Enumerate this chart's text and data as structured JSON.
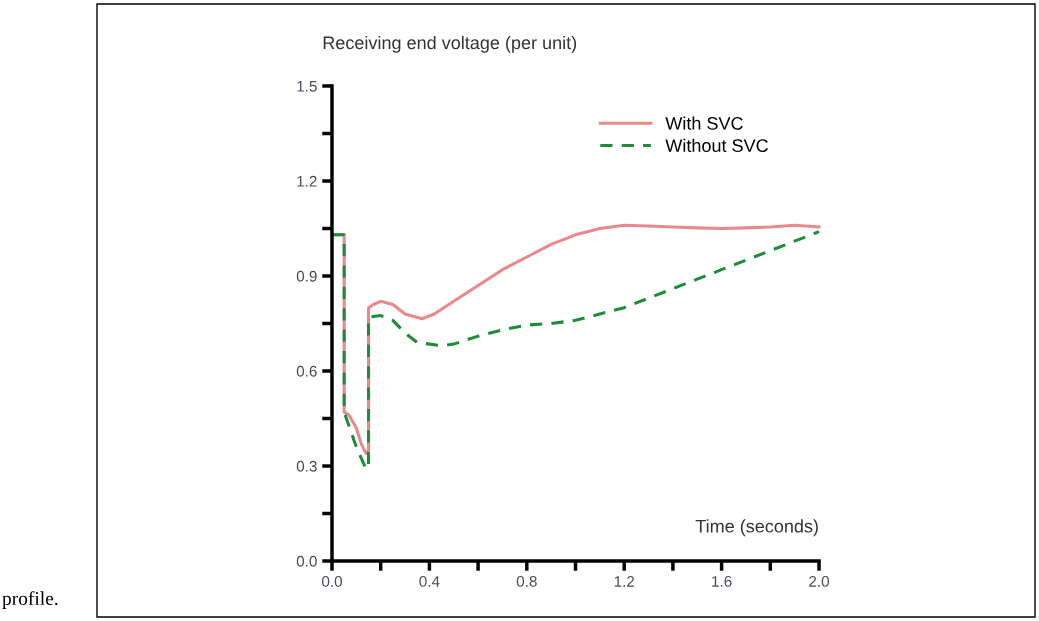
{
  "chart_data": {
    "type": "line",
    "xlabel": "Time (seconds)",
    "ylabel": "Receiving end voltage (per unit)",
    "xlim": [
      0,
      2.0
    ],
    "ylim": [
      0,
      1.5
    ],
    "xticks": [
      {
        "value": 0,
        "label": "0.0"
      },
      {
        "value": 0.2,
        "label": null
      },
      0.4,
      {
        "value": 0.6,
        "label": null
      },
      0.8,
      {
        "value": 1.0,
        "label": null
      },
      1.2,
      {
        "value": 1.4,
        "label": null
      },
      1.6,
      {
        "value": 1.8,
        "label": null
      },
      {
        "value": 2.0,
        "label": "2.0"
      }
    ],
    "yticks": [
      {
        "value": 0,
        "label": "0.0"
      },
      {
        "value": 0.15,
        "label": null
      },
      0.3,
      {
        "value": 0.45,
        "label": null
      },
      0.6,
      {
        "value": 0.75,
        "label": null
      },
      0.9,
      {
        "value": 1.05,
        "label": null
      },
      1.2,
      {
        "value": 1.35,
        "label": null
      },
      1.5
    ],
    "grid": false,
    "legend": "top right",
    "marker": "none",
    "annotations": [
      "profile."
    ],
    "series": [
      {
        "name": "With SVC",
        "color": "#e8898c",
        "line_style": "solid",
        "x": [
          0,
          0.05,
          0.05,
          0.07,
          0.1,
          0.12,
          0.14,
          0.15,
          0.15,
          0.17,
          0.2,
          0.25,
          0.3,
          0.37,
          0.42,
          0.5,
          0.6,
          0.7,
          0.8,
          0.9,
          1.0,
          1.1,
          1.2,
          1.3,
          1.4,
          1.5,
          1.6,
          1.7,
          1.8,
          1.9,
          2.0
        ],
        "values": [
          1.03,
          1.03,
          0.47,
          0.46,
          0.42,
          0.37,
          0.34,
          0.35,
          0.8,
          0.81,
          0.82,
          0.81,
          0.78,
          0.765,
          0.78,
          0.82,
          0.87,
          0.92,
          0.96,
          1.0,
          1.03,
          1.05,
          1.06,
          1.058,
          1.055,
          1.052,
          1.05,
          1.052,
          1.055,
          1.06,
          1.055
        ]
      },
      {
        "name": "Without SVC",
        "color": "#1e8c3a",
        "line_style": "dashed",
        "x": [
          0,
          0.05,
          0.05,
          0.1,
          0.14,
          0.15,
          0.15,
          0.2,
          0.25,
          0.3,
          0.35,
          0.45,
          0.5,
          0.6,
          0.7,
          0.8,
          0.9,
          1.0,
          1.1,
          1.2,
          1.3,
          1.4,
          1.5,
          1.6,
          1.7,
          1.8,
          1.9,
          2.0
        ],
        "values": [
          1.03,
          1.03,
          0.47,
          0.36,
          0.29,
          0.3,
          0.77,
          0.775,
          0.76,
          0.72,
          0.69,
          0.68,
          0.685,
          0.71,
          0.73,
          0.745,
          0.75,
          0.76,
          0.78,
          0.8,
          0.83,
          0.86,
          0.89,
          0.92,
          0.95,
          0.98,
          1.01,
          1.04
        ]
      }
    ]
  }
}
